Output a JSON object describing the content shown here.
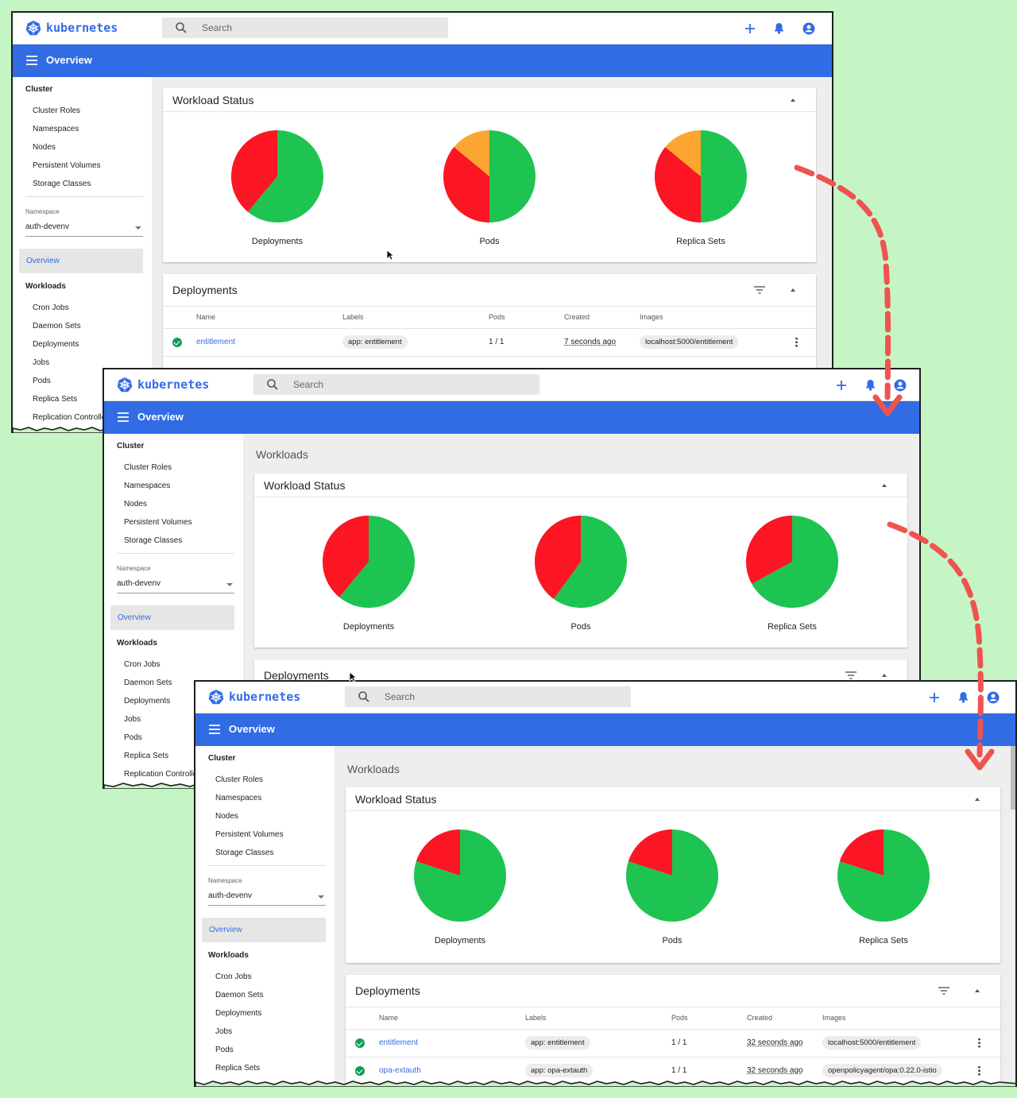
{
  "app": {
    "brand": "kubernetes",
    "search_placeholder": "Search",
    "page_title": "Overview"
  },
  "colors": {
    "brand": "#326ce5",
    "pie_ok": "#1ec451",
    "pie_failed": "#fc1523",
    "pie_pending": "#fca631",
    "bg": "#c5f5c5"
  },
  "sidebar": {
    "cluster_heading": "Cluster",
    "cluster_items": [
      "Cluster Roles",
      "Namespaces",
      "Nodes",
      "Persistent Volumes",
      "Storage Classes"
    ],
    "namespace_label": "Namespace",
    "namespace_value": "auth-devenv",
    "overview": "Overview",
    "workloads_heading": "Workloads",
    "workload_items": [
      "Cron Jobs",
      "Daemon Sets",
      "Deployments",
      "Jobs",
      "Pods",
      "Replica Sets",
      "Replication Controllers"
    ]
  },
  "workloads_header": "Workloads",
  "workload_status": {
    "title": "Workload Status",
    "pie_labels": [
      "Deployments",
      "Pods",
      "Replica Sets"
    ]
  },
  "screens": [
    {
      "pies": [
        {
          "ok": 0.61,
          "failed": 0.39,
          "pending": 0.0
        },
        {
          "ok": 0.5,
          "failed": 0.36,
          "pending": 0.14
        },
        {
          "ok": 0.5,
          "failed": 0.36,
          "pending": 0.14
        }
      ]
    },
    {
      "pies": [
        {
          "ok": 0.61,
          "failed": 0.39,
          "pending": 0.0
        },
        {
          "ok": 0.6,
          "failed": 0.4,
          "pending": 0.0
        },
        {
          "ok": 0.67,
          "failed": 0.33,
          "pending": 0.0
        }
      ]
    },
    {
      "pies": [
        {
          "ok": 0.8,
          "failed": 0.2,
          "pending": 0.0
        },
        {
          "ok": 0.8,
          "failed": 0.2,
          "pending": 0.0
        },
        {
          "ok": 0.8,
          "failed": 0.2,
          "pending": 0.0
        }
      ]
    }
  ],
  "deployments": {
    "title": "Deployments",
    "columns": [
      "Name",
      "Labels",
      "Pods",
      "Created",
      "Images"
    ],
    "screen1_rows": [
      {
        "name": "entitlement",
        "label": "app: entitlement",
        "pods": "1 / 1",
        "created": "7 seconds ago",
        "image": "localhost:5000/entitlement"
      }
    ],
    "screen3_rows": [
      {
        "name": "entitlement",
        "label": "app: entitlement",
        "pods": "1 / 1",
        "created": "32 seconds ago",
        "image": "localhost:5000/entitlement"
      },
      {
        "name": "opa-extauth",
        "label": "app: opa-extauth",
        "pods": "1 / 1",
        "created": "32 seconds ago",
        "image": "openpolicyagent/opa:0.22.0-istio"
      }
    ]
  }
}
